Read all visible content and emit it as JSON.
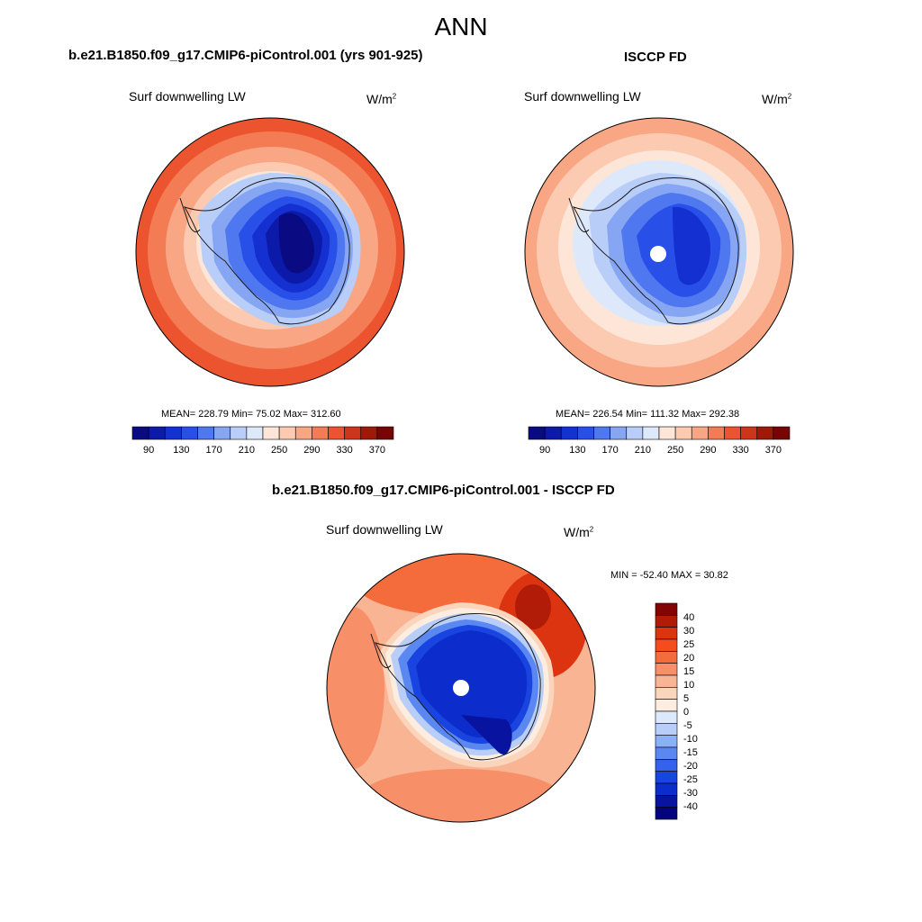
{
  "figure": {
    "season": "ANN"
  },
  "panels": [
    {
      "title": "b.e21.B1850.f09_g17.CMIP6-piControl.001 (yrs 901-925)",
      "variable": "Surf downwelling LW",
      "units_base": "W/m",
      "units_exp": "2",
      "stats": "MEAN= 228.79  Min=  75.02  Max= 312.60"
    },
    {
      "title": "ISCCP FD",
      "variable": "Surf downwelling LW",
      "units_base": "W/m",
      "units_exp": "2",
      "stats": "MEAN= 226.54  Min= 111.32  Max= 292.38"
    },
    {
      "title": "b.e21.B1850.f09_g17.CMIP6-piControl.001 - ISCCP FD",
      "variable": "Surf downwelling LW",
      "units_base": "W/m",
      "units_exp": "2",
      "stats": "MIN = -52.40 MAX =  30.82"
    }
  ],
  "colorbar_abs": {
    "colors": [
      "#0a0a82",
      "#0b1aa8",
      "#1530d0",
      "#2850e8",
      "#4f78f0",
      "#86a6f4",
      "#b8cdf8",
      "#dde8fb",
      "#fde6d8",
      "#fbcab0",
      "#f8a684",
      "#f47c54",
      "#ec5430",
      "#d0341c",
      "#a01808",
      "#780404"
    ],
    "tick_labels": [
      "90",
      "130",
      "170",
      "210",
      "250",
      "290",
      "330",
      "370"
    ]
  },
  "colorbar_diff": {
    "colors": [
      "#820404",
      "#b01c08",
      "#dc3410",
      "#f44c1c",
      "#f56c3c",
      "#f79068",
      "#f9b494",
      "#fbd4bc",
      "#fdece0",
      "#dce8fb",
      "#b8cdf8",
      "#8ab0f6",
      "#5a88f0",
      "#3462ea",
      "#1a44e0",
      "#0c2ccc",
      "#0814a0",
      "#04047a"
    ],
    "tick_labels": [
      "40",
      "30",
      "25",
      "20",
      "15",
      "10",
      "5",
      "0",
      "-5",
      "-10",
      "-15",
      "-20",
      "-25",
      "-30",
      "-40"
    ]
  },
  "colors": {
    "coast": "#1a1a1a",
    "missing": "#ffffff"
  }
}
